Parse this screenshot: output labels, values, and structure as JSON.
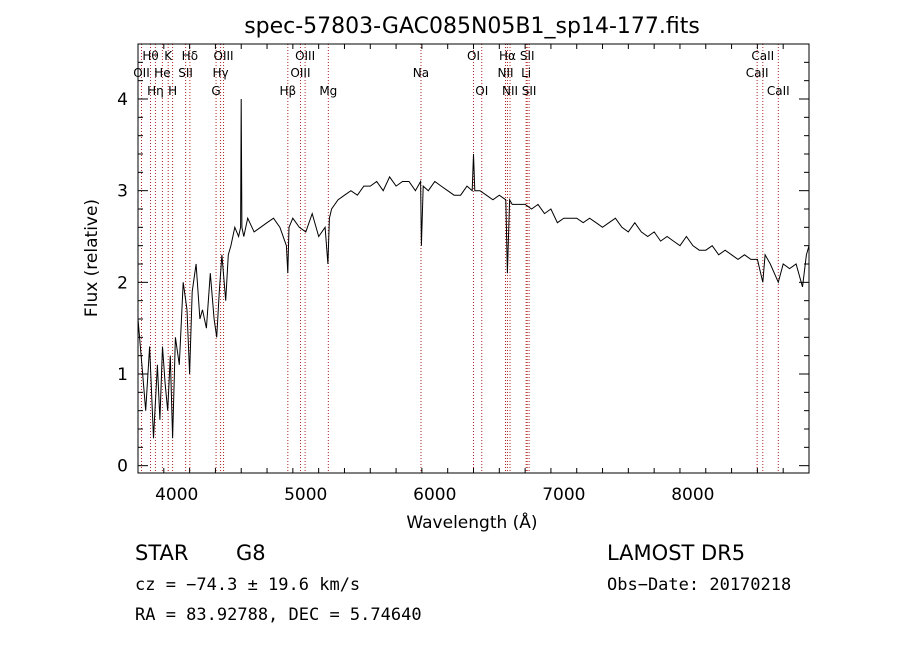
{
  "chart_data": {
    "type": "line",
    "title": "spec-57803-GAC085N05B1_sp14-177.fits",
    "xlabel": "Wavelength (Å)",
    "ylabel": "Flux (relative)",
    "xlim": [
      3700,
      8900
    ],
    "ylim": [
      -0.08,
      4.6
    ],
    "xticks": [
      4000,
      5000,
      6000,
      7000,
      8000
    ],
    "yticks": [
      0,
      1,
      2,
      3,
      4
    ],
    "grid": false,
    "series": [
      {
        "x": [
          3700,
          3730,
          3760,
          3790,
          3820,
          3850,
          3870,
          3890,
          3910,
          3930,
          3950,
          3968,
          3990,
          4020,
          4050,
          4080,
          4100,
          4120,
          4150,
          4180,
          4200,
          4230,
          4260,
          4290,
          4310,
          4330,
          4350,
          4380,
          4400,
          4420,
          4450,
          4480,
          4495,
          4500,
          4505,
          4520,
          4550,
          4600,
          4650,
          4700,
          4750,
          4800,
          4850,
          4861,
          4870,
          4900,
          4950,
          5000,
          5050,
          5100,
          5150,
          5172,
          5183,
          5200,
          5250,
          5300,
          5350,
          5400,
          5450,
          5500,
          5550,
          5600,
          5650,
          5700,
          5750,
          5800,
          5850,
          5890,
          5896,
          5910,
          5950,
          6000,
          6050,
          6100,
          6150,
          6200,
          6250,
          6290,
          6300,
          6310,
          6350,
          6400,
          6450,
          6500,
          6550,
          6563,
          6580,
          6600,
          6650,
          6700,
          6750,
          6800,
          6850,
          6900,
          6950,
          7000,
          7050,
          7100,
          7150,
          7200,
          7250,
          7300,
          7350,
          7400,
          7450,
          7500,
          7550,
          7600,
          7650,
          7700,
          7750,
          7800,
          7850,
          7900,
          7950,
          8000,
          8050,
          8100,
          8150,
          8200,
          8250,
          8300,
          8350,
          8400,
          8450,
          8500,
          8542,
          8560,
          8600,
          8662,
          8700,
          8750,
          8800,
          8850,
          8880,
          8900
        ],
        "y": [
          1.6,
          1.1,
          0.6,
          1.3,
          0.3,
          1.1,
          0.5,
          1.3,
          0.9,
          0.6,
          1.2,
          0.3,
          1.4,
          1.1,
          2.0,
          1.7,
          1.0,
          1.9,
          2.2,
          1.6,
          1.7,
          1.5,
          2.1,
          1.6,
          1.4,
          1.9,
          2.3,
          1.8,
          2.3,
          2.4,
          2.6,
          2.5,
          2.6,
          4.0,
          2.6,
          2.5,
          2.7,
          2.55,
          2.6,
          2.65,
          2.7,
          2.6,
          2.4,
          2.1,
          2.6,
          2.7,
          2.6,
          2.55,
          2.75,
          2.5,
          2.6,
          2.2,
          2.7,
          2.8,
          2.9,
          2.95,
          3.0,
          2.95,
          3.05,
          3.05,
          3.1,
          3.0,
          3.15,
          3.05,
          3.1,
          3.1,
          3.0,
          3.1,
          2.4,
          3.05,
          3.0,
          3.1,
          3.05,
          3.0,
          2.95,
          2.95,
          3.05,
          3.0,
          3.4,
          3.0,
          3.0,
          2.95,
          2.9,
          2.95,
          2.9,
          2.1,
          2.9,
          2.85,
          2.85,
          2.85,
          2.8,
          2.85,
          2.75,
          2.8,
          2.65,
          2.7,
          2.7,
          2.7,
          2.65,
          2.7,
          2.65,
          2.6,
          2.65,
          2.7,
          2.6,
          2.55,
          2.65,
          2.55,
          2.5,
          2.55,
          2.45,
          2.5,
          2.45,
          2.4,
          2.5,
          2.4,
          2.35,
          2.35,
          2.4,
          2.3,
          2.35,
          2.3,
          2.25,
          2.3,
          2.25,
          2.25,
          2.0,
          2.3,
          2.2,
          2.0,
          2.2,
          2.15,
          2.2,
          1.95,
          2.3,
          2.4
        ]
      }
    ],
    "spectral_lines": [
      {
        "label": "Hθ",
        "x": 3797,
        "row": 0
      },
      {
        "label": "OII",
        "x": 3727,
        "row": 1
      },
      {
        "label": "OII",
        "x": 3727,
        "row": 3
      },
      {
        "label": "Hη",
        "x": 3835,
        "row": 2
      },
      {
        "label": "K",
        "x": 3934,
        "row": 0
      },
      {
        "label": "He",
        "x": 3889,
        "row": 1
      },
      {
        "label": "H",
        "x": 3968,
        "row": 2
      },
      {
        "label": "Hδ",
        "x": 4102,
        "row": 0
      },
      {
        "label": "SII",
        "x": 4069,
        "row": 1
      },
      {
        "label": "OIII",
        "x": 4363,
        "row": 0
      },
      {
        "label": "Hγ",
        "x": 4340,
        "row": 1
      },
      {
        "label": "G",
        "x": 4305,
        "row": 2
      },
      {
        "label": "OIII",
        "x": 4995,
        "row": 0
      },
      {
        "label": "OIII",
        "x": 4959,
        "row": 1
      },
      {
        "label": "Hβ",
        "x": 4861,
        "row": 2
      },
      {
        "label": "Mg",
        "x": 5175,
        "row": 2
      },
      {
        "label": "Na",
        "x": 5893,
        "row": 1
      },
      {
        "label": "OI",
        "x": 6300,
        "row": 0
      },
      {
        "label": "OI",
        "x": 6364,
        "row": 2
      },
      {
        "label": "Hα",
        "x": 6563,
        "row": 0
      },
      {
        "label": "NII",
        "x": 6548,
        "row": 1
      },
      {
        "label": "NII",
        "x": 6583,
        "row": 2
      },
      {
        "label": "SII",
        "x": 6716,
        "row": 0
      },
      {
        "label": "Li",
        "x": 6708,
        "row": 1
      },
      {
        "label": "SII",
        "x": 6731,
        "row": 2
      },
      {
        "label": "CaII",
        "x": 8542,
        "row": 0
      },
      {
        "label": "CaII",
        "x": 8498,
        "row": 1
      },
      {
        "label": "CaII",
        "x": 8662,
        "row": 2
      }
    ],
    "marker_color": "#b22222",
    "line_color": "#000000"
  },
  "info": {
    "object_class": "STAR",
    "subclass": "G8",
    "survey": "LAMOST DR5",
    "cz": "cz = −74.3 ± 19.6 km/s",
    "obs_date": "Obs−Date: 20170218",
    "coords": "RA =  83.92788, DEC =   5.74640"
  }
}
